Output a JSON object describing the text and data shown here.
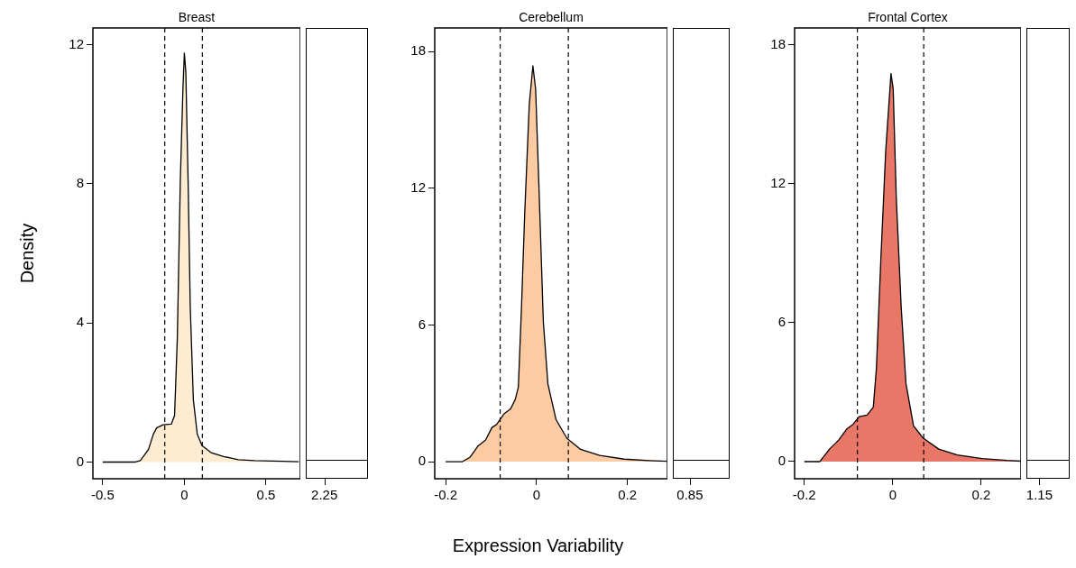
{
  "chart_data": [
    {
      "type": "area",
      "title": "Breast",
      "ylabel": "Density",
      "x": [
        -0.5,
        -0.3,
        -0.27,
        -0.22,
        -0.19,
        -0.17,
        -0.13,
        -0.08,
        -0.06,
        -0.043,
        -0.025,
        -0.009,
        0,
        0.009,
        0.023,
        0.036,
        0.055,
        0.079,
        0.108,
        0.164,
        0.24,
        0.33,
        0.43,
        0.6,
        0.7
      ],
      "series": [
        {
          "color": "#fdebd2",
          "values": [
            0,
            0,
            0.04,
            0.36,
            0.8,
            0.98,
            1.07,
            1.09,
            1.34,
            3.58,
            8.05,
            10.7,
            11.76,
            11.2,
            8.05,
            4.47,
            1.79,
            0.8,
            0.47,
            0.27,
            0.16,
            0.07,
            0.04,
            0.02,
            0.01
          ]
        }
      ],
      "xlim": [
        -0.56,
        0.71
      ],
      "xticks": [
        -0.5,
        0,
        0.5
      ],
      "ylim": [
        -0.48,
        12.48
      ],
      "yticks": [
        0,
        4,
        8,
        12
      ],
      "ref_lines": [
        {
          "axis": "x",
          "value": -0.12,
          "line_style": "dashed"
        },
        {
          "axis": "x",
          "value": 0.11,
          "line_style": "dashed"
        }
      ]
    },
    {
      "type": "other",
      "annotations": [
        "2.25"
      ]
    },
    {
      "type": "area",
      "title": "Cerebellum",
      "xlabel": "Expression Variability",
      "x": [
        -0.2,
        -0.163,
        -0.146,
        -0.129,
        -0.112,
        -0.098,
        -0.088,
        -0.071,
        -0.057,
        -0.047,
        -0.04,
        -0.033,
        -0.026,
        -0.016,
        -0.008,
        -0.002,
        0.005,
        0.015,
        0.025,
        0.043,
        0.067,
        0.097,
        0.139,
        0.193,
        0.248,
        0.288
      ],
      "series": [
        {
          "color": "#fdcba2",
          "values": [
            0,
            0,
            0.2,
            0.68,
            0.95,
            1.5,
            1.63,
            2.11,
            2.32,
            2.72,
            3.27,
            6.81,
            10.9,
            15.67,
            17.37,
            16.35,
            12.26,
            6.13,
            3.41,
            1.84,
            1.02,
            0.54,
            0.27,
            0.11,
            0.05,
            0.02
          ]
        }
      ],
      "xlim": [
        -0.224,
        0.288
      ],
      "xticks": [
        -0.2,
        0,
        0.2
      ],
      "ylim": [
        -0.75,
        19.03
      ],
      "yticks": [
        0,
        6,
        12,
        18
      ],
      "ref_lines": [
        {
          "axis": "x",
          "value": -0.08,
          "line_style": "dashed"
        },
        {
          "axis": "x",
          "value": 0.07,
          "line_style": "dashed"
        }
      ]
    },
    {
      "type": "other",
      "annotations": [
        "0.85"
      ]
    },
    {
      "type": "area",
      "title": "Frontal Cortex",
      "x": [
        -0.2,
        -0.165,
        -0.143,
        -0.122,
        -0.104,
        -0.09,
        -0.076,
        -0.058,
        -0.044,
        -0.037,
        -0.027,
        -0.016,
        -0.004,
        0.001,
        0.008,
        0.019,
        0.03,
        0.047,
        0.069,
        0.104,
        0.146,
        0.202,
        0.258,
        0.29
      ],
      "series": [
        {
          "color": "#e87767",
          "values": [
            0,
            0,
            0.54,
            0.94,
            1.41,
            1.61,
            1.94,
            2.01,
            2.35,
            4.02,
            8.71,
            13.4,
            16.76,
            16.09,
            11.39,
            6.7,
            3.35,
            1.54,
            1.01,
            0.54,
            0.29,
            0.13,
            0.05,
            0.02
          ]
        }
      ],
      "xlim": [
        -0.222,
        0.29
      ],
      "xticks": [
        -0.2,
        0,
        0.2
      ],
      "ylim": [
        -0.74,
        18.73
      ],
      "yticks": [
        0,
        6,
        12,
        18
      ],
      "ref_lines": [
        {
          "axis": "x",
          "value": -0.08,
          "line_style": "dashed"
        },
        {
          "axis": "x",
          "value": 0.07,
          "line_style": "dashed"
        }
      ]
    },
    {
      "type": "other",
      "annotations": [
        "1.15"
      ]
    }
  ]
}
